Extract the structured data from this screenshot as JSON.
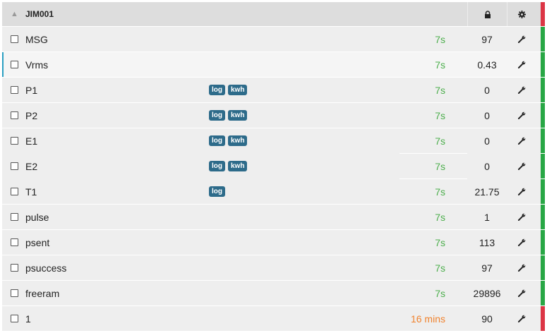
{
  "header": {
    "title": "JIM001",
    "collapse_icon": "chevron-up-icon",
    "lock_icon": "lock-icon",
    "settings_icon": "gear-icon",
    "status_color": "#dc3545"
  },
  "colors": {
    "ok": "#28a745",
    "stale": "#dc3545",
    "time_ok": "#4cae4c",
    "time_stale": "#f0822d",
    "badge": "#2d6b8a"
  },
  "rows": [
    {
      "name": "MSG",
      "badges": [],
      "time": "7s",
      "value": "97",
      "status": "ok"
    },
    {
      "name": "Vrms",
      "badges": [],
      "time": "7s",
      "value": "0.43",
      "status": "ok"
    },
    {
      "name": "P1",
      "badges": [
        "log",
        "kwh"
      ],
      "time": "7s",
      "value": "0",
      "status": "ok"
    },
    {
      "name": "P2",
      "badges": [
        "log",
        "kwh"
      ],
      "time": "7s",
      "value": "0",
      "status": "ok"
    },
    {
      "name": "E1",
      "badges": [
        "log",
        "kwh"
      ],
      "time": "7s",
      "value": "0",
      "status": "ok"
    },
    {
      "name": "E2",
      "badges": [
        "log",
        "kwh"
      ],
      "time": "7s",
      "value": "0",
      "status": "ok"
    },
    {
      "name": "T1",
      "badges": [
        "log"
      ],
      "time": "7s",
      "value": "21.75",
      "status": "ok"
    },
    {
      "name": "pulse",
      "badges": [],
      "time": "7s",
      "value": "1",
      "status": "ok"
    },
    {
      "name": "psent",
      "badges": [],
      "time": "7s",
      "value": "113",
      "status": "ok"
    },
    {
      "name": "psuccess",
      "badges": [],
      "time": "7s",
      "value": "97",
      "status": "ok"
    },
    {
      "name": "freeram",
      "badges": [],
      "time": "7s",
      "value": "29896",
      "status": "ok"
    },
    {
      "name": "1",
      "badges": [],
      "time": "16 mins",
      "value": "90",
      "status": "stale"
    }
  ]
}
